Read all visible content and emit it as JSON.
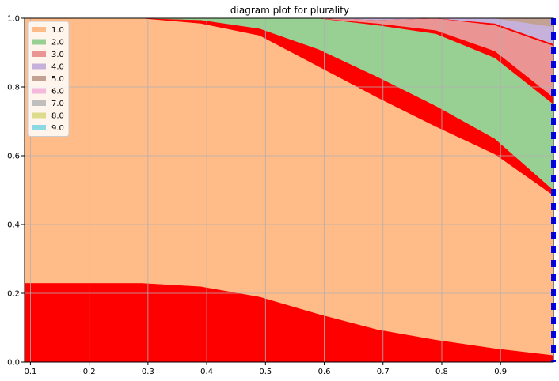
{
  "chart_data": {
    "type": "area",
    "title": "diagram plot for plurality",
    "xlabel": "",
    "ylabel": "",
    "xlim": [
      0.09,
      0.99
    ],
    "ylim": [
      0.0,
      1.0
    ],
    "grid": true,
    "legend_position": "top-left",
    "x_ticks": [
      0.1,
      0.2,
      0.3,
      0.4,
      0.5,
      0.6,
      0.7,
      0.8,
      0.9
    ],
    "x_tick_labels": [
      "0.1",
      "0.2",
      "0.3",
      "0.4",
      "0.5",
      "0.6",
      "0.7",
      "0.8",
      "0.9"
    ],
    "y_ticks": [
      0.0,
      0.2,
      0.4,
      0.6,
      0.8,
      1.0
    ],
    "y_tick_labels": [
      "0.0",
      "0.2",
      "0.4",
      "0.6",
      "0.8",
      "1.0"
    ],
    "x": [
      0.09,
      0.19,
      0.29,
      0.39,
      0.49,
      0.59,
      0.69,
      0.79,
      0.89,
      0.99
    ],
    "legend": [
      {
        "label": "1.0",
        "color": "#ffbb88"
      },
      {
        "label": "2.0",
        "color": "#98cf93"
      },
      {
        "label": "3.0",
        "color": "#ea9593"
      },
      {
        "label": "4.0",
        "color": "#c5b1da"
      },
      {
        "label": "5.0",
        "color": "#c4a293"
      },
      {
        "label": "6.0",
        "color": "#f4b9dc"
      },
      {
        "label": "7.0",
        "color": "#bfbfbf"
      },
      {
        "label": "8.0",
        "color": "#dcdc8c"
      },
      {
        "label": "9.0",
        "color": "#8bd9e2"
      }
    ],
    "series": [
      {
        "color": "#ff0000",
        "values": [
          0.23,
          0.23,
          0.23,
          0.22,
          0.19,
          0.14,
          0.095,
          0.065,
          0.04,
          0.02
        ]
      },
      {
        "color": "#ffbb88",
        "values": [
          0.77,
          0.77,
          0.77,
          0.765,
          0.76,
          0.72,
          0.675,
          0.62,
          0.565,
          0.465
        ]
      },
      {
        "color": "#ff0000",
        "values": [
          0.0,
          0.0,
          0.0,
          0.01,
          0.02,
          0.05,
          0.06,
          0.06,
          0.045,
          0.015
        ]
      },
      {
        "color": "#98cf93",
        "values": [
          0.0,
          0.0,
          0.0,
          0.005,
          0.03,
          0.09,
          0.15,
          0.21,
          0.235,
          0.25
        ]
      },
      {
        "color": "#ff0000",
        "values": [
          0.0,
          0.0,
          0.0,
          0.0,
          0.0,
          0.0,
          0.005,
          0.01,
          0.02,
          0.02
        ]
      },
      {
        "color": "#ea9593",
        "values": [
          0.0,
          0.0,
          0.0,
          0.0,
          0.0,
          0.0,
          0.01,
          0.035,
          0.075,
          0.15
        ]
      },
      {
        "color": "#ff0000",
        "values": [
          0.0,
          0.0,
          0.0,
          0.0,
          0.0,
          0.0,
          0.0,
          0.0,
          0.005,
          0.005
        ]
      },
      {
        "color": "#c5b1da",
        "values": [
          0.0,
          0.0,
          0.0,
          0.0,
          0.0,
          0.0,
          0.005,
          0.01,
          0.015,
          0.05
        ]
      },
      {
        "color": "#c4a293",
        "values": [
          0.0,
          0.0,
          0.0,
          0.0,
          0.0,
          0.0,
          0.0,
          0.0,
          0.0,
          0.025
        ]
      }
    ],
    "marker_line": {
      "x": 0.99,
      "color": "#0000ff",
      "style": "dashed"
    }
  }
}
